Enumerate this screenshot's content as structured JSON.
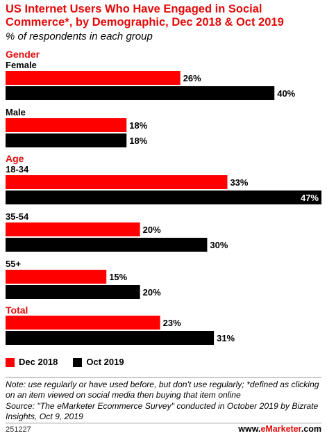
{
  "title": "US Internet Users Who Have Engaged in Social Commerce*, by Demographic, Dec 2018 & Oct 2019",
  "subtitle": "% of respondents in each group",
  "colors": {
    "accent": "#e30a0a",
    "series1": "#ff0000",
    "series2": "#000000"
  },
  "chart_data": {
    "type": "bar",
    "orientation": "horizontal",
    "title": "US Internet Users Who Have Engaged in Social Commerce*, by Demographic, Dec 2018 & Oct 2019",
    "subtitle": "% of respondents in each group",
    "unit": "%",
    "xlim": [
      0,
      47
    ],
    "legend_position": "bottom",
    "grid": false,
    "series": [
      {
        "name": "Dec 2018",
        "color": "#ff0000"
      },
      {
        "name": "Oct 2019",
        "color": "#000000"
      }
    ],
    "groups": [
      {
        "heading": "Gender",
        "categories": [
          {
            "label": "Female",
            "values": [
              26,
              40
            ]
          },
          {
            "label": "Male",
            "values": [
              18,
              18
            ]
          }
        ]
      },
      {
        "heading": "Age",
        "categories": [
          {
            "label": "18-34",
            "values": [
              33,
              47
            ]
          },
          {
            "label": "35-54",
            "values": [
              20,
              30
            ]
          },
          {
            "label": "55+",
            "values": [
              15,
              20
            ]
          }
        ]
      },
      {
        "heading": "Total",
        "categories": [
          {
            "label": "",
            "values": [
              23,
              31
            ]
          }
        ]
      }
    ]
  },
  "legend": {
    "items": [
      "Dec 2018",
      "Oct 2019"
    ]
  },
  "note": "Note: use regularly or have used before, but don't use regularly; *defined as clicking on an item viewed on social media then buying that item online",
  "source": "Source: \"The eMarketer Ecommerce Survey\" conducted in October 2019 by Bizrate Insights, Oct 9, 2019",
  "footer_id": "251227",
  "brand": {
    "prefix": "www.",
    "name": "eMarketer",
    "suffix": ".com"
  }
}
